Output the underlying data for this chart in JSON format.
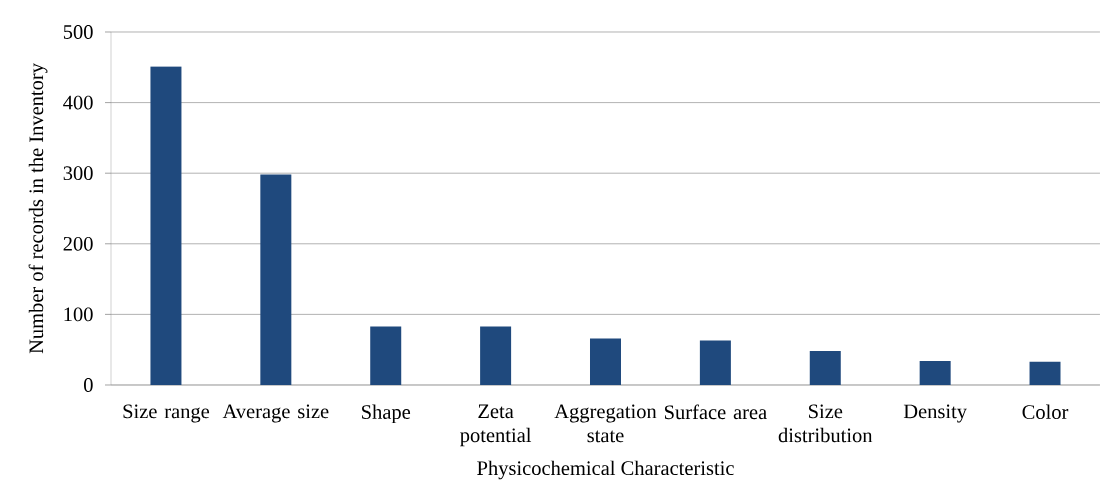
{
  "chart_data": {
    "type": "bar",
    "xlabel": "Physicochemical Characteristic",
    "ylabel": "Number of records in the Inventory",
    "categories": [
      "Size range",
      "Average size",
      "Shape",
      "Zeta potential",
      "Aggregation state",
      "Surface area",
      "Size distribution",
      "Density",
      "Color"
    ],
    "values": [
      451,
      298,
      83,
      83,
      66,
      63,
      48,
      34,
      33
    ],
    "color": "#1f497d",
    "ylim": [
      0,
      500
    ],
    "yticks": [
      0,
      100,
      200,
      300,
      400,
      500
    ],
    "grid": "y"
  }
}
